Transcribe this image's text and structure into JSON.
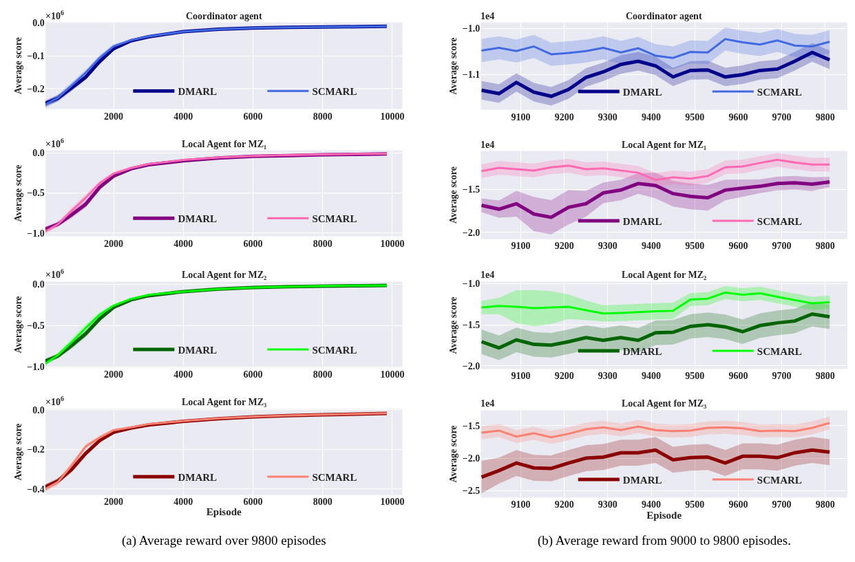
{
  "chart_data": [
    {
      "type": "line",
      "title": "Coordinator agent",
      "ylabel": "Average score",
      "annotations": [
        "×10$^{6}$"
      ],
      "x": [
        40,
        400,
        800,
        1200,
        1600,
        2000,
        2500,
        3000,
        4000,
        5000,
        6000,
        7000,
        8000,
        9000,
        9840
      ],
      "xlim": [
        40,
        10290
      ],
      "ylim": [
        -0.262,
        0.002
      ],
      "xticks": [
        2000,
        4000,
        6000,
        8000,
        10000
      ],
      "yticks": [
        {
          "value": 0,
          "label": "0.0"
        },
        {
          "value": -0.1,
          "label": "−0.1"
        },
        {
          "value": -0.2,
          "label": "−0.2"
        }
      ],
      "grid": true,
      "legend": "bottom right",
      "series": [
        {
          "name": "DMARL",
          "color": "#00008b",
          "values": [
            -0.245,
            -0.229,
            -0.197,
            -0.165,
            -0.117,
            -0.078,
            -0.054,
            -0.042,
            -0.026,
            -0.019,
            -0.015,
            -0.013,
            -0.012,
            -0.011,
            -0.01
          ],
          "lower": [
            -0.255,
            -0.239,
            -0.207,
            -0.173,
            -0.125,
            -0.084,
            -0.058,
            -0.045,
            -0.028,
            -0.02,
            -0.016,
            -0.014,
            -0.013,
            -0.012,
            -0.011
          ],
          "upper": [
            -0.235,
            -0.219,
            -0.187,
            -0.157,
            -0.109,
            -0.072,
            -0.05,
            -0.039,
            -0.024,
            -0.018,
            -0.014,
            -0.012,
            -0.011,
            -0.01,
            -0.009
          ]
        },
        {
          "name": "SCMARL",
          "color": "#4169e1",
          "values": [
            -0.248,
            -0.228,
            -0.19,
            -0.151,
            -0.106,
            -0.071,
            -0.052,
            -0.041,
            -0.026,
            -0.019,
            -0.015,
            -0.013,
            -0.012,
            -0.011,
            -0.01
          ],
          "lower": [
            -0.258,
            -0.238,
            -0.2,
            -0.159,
            -0.114,
            -0.077,
            -0.056,
            -0.044,
            -0.028,
            -0.02,
            -0.016,
            -0.014,
            -0.013,
            -0.012,
            -0.011
          ],
          "upper": [
            -0.238,
            -0.218,
            -0.18,
            -0.143,
            -0.098,
            -0.065,
            -0.048,
            -0.038,
            -0.024,
            -0.018,
            -0.014,
            -0.012,
            -0.011,
            -0.01,
            -0.009
          ]
        }
      ]
    },
    {
      "type": "line",
      "title": "Coordinator agent",
      "ylabel": "Average score",
      "annotations": [
        "1e4"
      ],
      "x": [
        9010,
        9050,
        9090,
        9130,
        9170,
        9210,
        9250,
        9290,
        9330,
        9370,
        9410,
        9450,
        9490,
        9530,
        9570,
        9610,
        9650,
        9690,
        9730,
        9770,
        9810
      ],
      "xlim": [
        9008,
        9851
      ],
      "ylim": [
        -1.176,
        -0.987
      ],
      "xticks": [
        9100,
        9200,
        9300,
        9400,
        9500,
        9600,
        9700,
        9800
      ],
      "yticks": [
        {
          "value": -1.0,
          "label": "−1.0"
        },
        {
          "value": -1.1,
          "label": "−1.1"
        }
      ],
      "grid": true,
      "legend": "bottom right",
      "series": [
        {
          "name": "DMARL",
          "color": "#00008b",
          "values": [
            -1.134,
            -1.141,
            -1.117,
            -1.138,
            -1.147,
            -1.132,
            -1.106,
            -1.094,
            -1.078,
            -1.071,
            -1.081,
            -1.105,
            -1.091,
            -1.09,
            -1.105,
            -1.1,
            -1.091,
            -1.088,
            -1.071,
            -1.052,
            -1.068
          ],
          "lower": [
            -1.154,
            -1.161,
            -1.137,
            -1.158,
            -1.167,
            -1.152,
            -1.126,
            -1.114,
            -1.098,
            -1.091,
            -1.101,
            -1.125,
            -1.111,
            -1.11,
            -1.125,
            -1.12,
            -1.111,
            -1.108,
            -1.091,
            -1.072,
            -1.088
          ],
          "upper": [
            -1.114,
            -1.121,
            -1.097,
            -1.118,
            -1.127,
            -1.112,
            -1.086,
            -1.074,
            -1.058,
            -1.051,
            -1.061,
            -1.085,
            -1.071,
            -1.07,
            -1.085,
            -1.08,
            -1.071,
            -1.068,
            -1.051,
            -1.032,
            -1.048
          ]
        },
        {
          "name": "SCMARL",
          "color": "#4169e1",
          "values": [
            -1.048,
            -1.042,
            -1.049,
            -1.039,
            -1.056,
            -1.053,
            -1.049,
            -1.042,
            -1.052,
            -1.043,
            -1.059,
            -1.064,
            -1.051,
            -1.052,
            -1.023,
            -1.03,
            -1.035,
            -1.026,
            -1.037,
            -1.039,
            -1.029
          ],
          "lower": [
            -1.073,
            -1.067,
            -1.074,
            -1.064,
            -1.081,
            -1.078,
            -1.074,
            -1.067,
            -1.077,
            -1.068,
            -1.084,
            -1.089,
            -1.076,
            -1.077,
            -1.048,
            -1.055,
            -1.06,
            -1.051,
            -1.062,
            -1.064,
            -1.054
          ],
          "upper": [
            -1.023,
            -1.017,
            -1.024,
            -1.014,
            -1.031,
            -1.028,
            -1.024,
            -1.017,
            -1.027,
            -1.018,
            -1.034,
            -1.039,
            -1.026,
            -1.027,
            -0.998,
            -1.005,
            -1.01,
            -1.001,
            -1.012,
            -1.014,
            -1.004
          ]
        }
      ]
    },
    {
      "type": "line",
      "title": "Local Agent for MZ₁",
      "ylabel": "Average score",
      "annotations": [
        "×10$^{6}$"
      ],
      "x": [
        40,
        400,
        800,
        1200,
        1600,
        2000,
        2500,
        3000,
        4000,
        5000,
        6000,
        7000,
        8000,
        9000,
        9840
      ],
      "xlim": [
        40,
        10290
      ],
      "ylim": [
        -1.04,
        0.03
      ],
      "xticks": [
        2000,
        4000,
        6000,
        8000,
        10000
      ],
      "yticks": [
        {
          "value": 0,
          "label": "0.0"
        },
        {
          "value": -0.5,
          "label": "−0.5"
        },
        {
          "value": -1.0,
          "label": "−1.0"
        }
      ],
      "grid": true,
      "legend": "bottom right",
      "series": [
        {
          "name": "DMARL",
          "color": "#800080",
          "values": [
            -0.95,
            -0.89,
            -0.77,
            -0.64,
            -0.43,
            -0.29,
            -0.2,
            -0.15,
            -0.1,
            -0.065,
            -0.045,
            -0.035,
            -0.025,
            -0.02,
            -0.015
          ],
          "lower": [
            -0.98,
            -0.92,
            -0.81,
            -0.68,
            -0.46,
            -0.31,
            -0.215,
            -0.16,
            -0.105,
            -0.07,
            -0.05,
            -0.04,
            -0.03,
            -0.025,
            -0.02
          ],
          "upper": [
            -0.92,
            -0.86,
            -0.73,
            -0.6,
            -0.4,
            -0.27,
            -0.185,
            -0.14,
            -0.095,
            -0.06,
            -0.04,
            -0.03,
            -0.02,
            -0.015,
            -0.01
          ]
        },
        {
          "name": "SCMARL",
          "color": "#ff69b4",
          "values": [
            -0.98,
            -0.89,
            -0.72,
            -0.56,
            -0.38,
            -0.26,
            -0.19,
            -0.14,
            -0.09,
            -0.06,
            -0.04,
            -0.03,
            -0.02,
            -0.015,
            -0.012
          ],
          "lower": [
            -1.01,
            -0.92,
            -0.76,
            -0.6,
            -0.41,
            -0.28,
            -0.205,
            -0.15,
            -0.095,
            -0.065,
            -0.045,
            -0.035,
            -0.025,
            -0.02,
            -0.017
          ],
          "upper": [
            -0.95,
            -0.86,
            -0.68,
            -0.52,
            -0.35,
            -0.24,
            -0.175,
            -0.13,
            -0.085,
            -0.055,
            -0.035,
            -0.025,
            -0.015,
            -0.01,
            -0.007
          ]
        }
      ]
    },
    {
      "type": "line",
      "title": "Local Agent for MZ₁",
      "ylabel": "Average score",
      "annotations": [
        "1e4"
      ],
      "x": [
        9010,
        9050,
        9090,
        9130,
        9170,
        9210,
        9250,
        9290,
        9330,
        9370,
        9410,
        9450,
        9490,
        9530,
        9570,
        9610,
        9650,
        9690,
        9730,
        9770,
        9810
      ],
      "xlim": [
        9008,
        9851
      ],
      "ylim": [
        -2.076,
        -1.051
      ],
      "xticks": [
        9100,
        9200,
        9300,
        9400,
        9500,
        9600,
        9700,
        9800
      ],
      "yticks": [
        {
          "value": -1.5,
          "label": "−1.5"
        },
        {
          "value": -2.0,
          "label": "−2.0"
        }
      ],
      "grid": true,
      "legend": "bottom right",
      "series": [
        {
          "name": "DMARL",
          "color": "#800080",
          "values": [
            -1.684,
            -1.728,
            -1.665,
            -1.785,
            -1.823,
            -1.706,
            -1.665,
            -1.538,
            -1.506,
            -1.43,
            -1.453,
            -1.547,
            -1.579,
            -1.595,
            -1.506,
            -1.484,
            -1.462,
            -1.43,
            -1.421,
            -1.437,
            -1.411
          ],
          "lower": [
            -1.764,
            -1.828,
            -1.815,
            -1.985,
            -2.023,
            -1.906,
            -1.815,
            -1.658,
            -1.626,
            -1.55,
            -1.603,
            -1.697,
            -1.729,
            -1.745,
            -1.626,
            -1.584,
            -1.542,
            -1.51,
            -1.501,
            -1.517,
            -1.471
          ],
          "upper": [
            -1.604,
            -1.628,
            -1.515,
            -1.585,
            -1.623,
            -1.506,
            -1.515,
            -1.418,
            -1.386,
            -1.31,
            -1.303,
            -1.397,
            -1.429,
            -1.445,
            -1.386,
            -1.384,
            -1.382,
            -1.35,
            -1.341,
            -1.357,
            -1.351
          ]
        },
        {
          "name": "SCMARL",
          "color": "#ff69b4",
          "values": [
            -1.285,
            -1.247,
            -1.263,
            -1.278,
            -1.241,
            -1.222,
            -1.263,
            -1.253,
            -1.278,
            -1.304,
            -1.389,
            -1.358,
            -1.373,
            -1.342,
            -1.241,
            -1.231,
            -1.19,
            -1.152,
            -1.184,
            -1.209,
            -1.209
          ],
          "lower": [
            -1.365,
            -1.327,
            -1.343,
            -1.358,
            -1.321,
            -1.302,
            -1.343,
            -1.333,
            -1.358,
            -1.384,
            -1.469,
            -1.438,
            -1.453,
            -1.422,
            -1.321,
            -1.311,
            -1.27,
            -1.232,
            -1.264,
            -1.289,
            -1.289
          ],
          "upper": [
            -1.205,
            -1.167,
            -1.183,
            -1.198,
            -1.161,
            -1.142,
            -1.183,
            -1.173,
            -1.198,
            -1.224,
            -1.309,
            -1.278,
            -1.293,
            -1.262,
            -1.161,
            -1.151,
            -1.11,
            -1.072,
            -1.104,
            -1.129,
            -1.129
          ]
        }
      ]
    },
    {
      "type": "line",
      "title": "Local Agent for MZ₂",
      "ylabel": "Average score",
      "annotations": [
        "×10$^{6}$"
      ],
      "x": [
        40,
        400,
        800,
        1200,
        1600,
        2000,
        2500,
        3000,
        4000,
        5000,
        6000,
        7000,
        8000,
        9000,
        9840
      ],
      "xlim": [
        40,
        10290
      ],
      "ylim": [
        -1.01,
        0.03
      ],
      "xticks": [
        2000,
        4000,
        6000,
        8000,
        10000
      ],
      "yticks": [
        {
          "value": 0,
          "label": "0.0"
        },
        {
          "value": -0.5,
          "label": "−0.5"
        },
        {
          "value": -1.0,
          "label": "−1.0"
        }
      ],
      "grid": true,
      "legend": "bottom right",
      "series": [
        {
          "name": "DMARL",
          "color": "#006400",
          "values": [
            -0.93,
            -0.87,
            -0.74,
            -0.6,
            -0.42,
            -0.28,
            -0.19,
            -0.14,
            -0.09,
            -0.06,
            -0.04,
            -0.03,
            -0.025,
            -0.02,
            -0.015
          ],
          "lower": [
            -0.96,
            -0.9,
            -0.78,
            -0.64,
            -0.45,
            -0.3,
            -0.205,
            -0.15,
            -0.095,
            -0.065,
            -0.045,
            -0.035,
            -0.03,
            -0.025,
            -0.02
          ],
          "upper": [
            -0.9,
            -0.84,
            -0.7,
            -0.56,
            -0.39,
            -0.26,
            -0.175,
            -0.13,
            -0.085,
            -0.055,
            -0.035,
            -0.025,
            -0.02,
            -0.015,
            -0.01
          ]
        },
        {
          "name": "SCMARL",
          "color": "#00ff00",
          "values": [
            -0.96,
            -0.86,
            -0.7,
            -0.53,
            -0.37,
            -0.26,
            -0.18,
            -0.13,
            -0.09,
            -0.06,
            -0.04,
            -0.03,
            -0.022,
            -0.018,
            -0.015
          ],
          "lower": [
            -0.99,
            -0.89,
            -0.74,
            -0.57,
            -0.4,
            -0.28,
            -0.195,
            -0.14,
            -0.095,
            -0.065,
            -0.045,
            -0.035,
            -0.027,
            -0.023,
            -0.02
          ],
          "upper": [
            -0.93,
            -0.83,
            -0.66,
            -0.49,
            -0.34,
            -0.24,
            -0.165,
            -0.12,
            -0.085,
            -0.055,
            -0.035,
            -0.025,
            -0.017,
            -0.013,
            -0.01
          ]
        }
      ]
    },
    {
      "type": "line",
      "title": "Local Agent for MZ₂",
      "ylabel": "Average score",
      "annotations": [
        "1e4"
      ],
      "x": [
        9010,
        9050,
        9090,
        9130,
        9170,
        9210,
        9250,
        9290,
        9330,
        9370,
        9410,
        9450,
        9490,
        9530,
        9570,
        9610,
        9650,
        9690,
        9730,
        9770,
        9810
      ],
      "xlim": [
        9008,
        9851
      ],
      "ylim": [
        -2.04,
        -0.974
      ],
      "xticks": [
        9100,
        9200,
        9300,
        9400,
        9500,
        9600,
        9700,
        9800
      ],
      "yticks": [
        {
          "value": -1.0,
          "label": "−1.0"
        },
        {
          "value": -1.5,
          "label": "−1.5"
        },
        {
          "value": -2.0,
          "label": "−2.0"
        }
      ],
      "grid": true,
      "legend": "bottom right",
      "series": [
        {
          "name": "DMARL",
          "color": "#006400",
          "values": [
            -1.707,
            -1.782,
            -1.684,
            -1.739,
            -1.749,
            -1.707,
            -1.657,
            -1.69,
            -1.657,
            -1.69,
            -1.598,
            -1.592,
            -1.52,
            -1.5,
            -1.526,
            -1.585,
            -1.51,
            -1.477,
            -1.454,
            -1.369,
            -1.402
          ],
          "lower": [
            -1.857,
            -1.932,
            -1.834,
            -1.889,
            -1.899,
            -1.857,
            -1.807,
            -1.84,
            -1.807,
            -1.84,
            -1.748,
            -1.742,
            -1.67,
            -1.65,
            -1.676,
            -1.735,
            -1.66,
            -1.627,
            -1.604,
            -1.519,
            -1.552
          ],
          "upper": [
            -1.557,
            -1.632,
            -1.534,
            -1.589,
            -1.599,
            -1.557,
            -1.507,
            -1.54,
            -1.507,
            -1.54,
            -1.448,
            -1.442,
            -1.37,
            -1.35,
            -1.376,
            -1.435,
            -1.36,
            -1.327,
            -1.304,
            -1.219,
            -1.252
          ]
        },
        {
          "name": "SCMARL",
          "color": "#00ff00",
          "values": [
            -1.29,
            -1.27,
            -1.28,
            -1.297,
            -1.29,
            -1.28,
            -1.323,
            -1.362,
            -1.356,
            -1.346,
            -1.336,
            -1.33,
            -1.192,
            -1.182,
            -1.107,
            -1.133,
            -1.116,
            -1.159,
            -1.198,
            -1.238,
            -1.225
          ],
          "lower": [
            -1.37,
            -1.37,
            -1.48,
            -1.517,
            -1.49,
            -1.43,
            -1.443,
            -1.462,
            -1.456,
            -1.446,
            -1.436,
            -1.43,
            -1.272,
            -1.262,
            -1.187,
            -1.213,
            -1.196,
            -1.239,
            -1.278,
            -1.318,
            -1.305
          ],
          "upper": [
            -1.21,
            -1.17,
            -1.08,
            -1.077,
            -1.09,
            -1.13,
            -1.203,
            -1.262,
            -1.256,
            -1.246,
            -1.236,
            -1.23,
            -1.112,
            -1.102,
            -1.027,
            -1.053,
            -1.036,
            -1.079,
            -1.118,
            -1.158,
            -1.145
          ]
        }
      ]
    },
    {
      "type": "line",
      "title": "Local Agent for MZ₃",
      "xlabel": "Episode",
      "ylabel": "Average score",
      "annotations": [
        "×10$^{6}$",
        "(a) Average reward over 9800 episodes"
      ],
      "x": [
        40,
        400,
        800,
        1200,
        1600,
        2000,
        2500,
        3000,
        4000,
        5000,
        6000,
        7000,
        8000,
        9000,
        9840
      ],
      "xlim": [
        40,
        10290
      ],
      "ylim": [
        -0.43,
        0.005
      ],
      "xticks": [
        2000,
        4000,
        6000,
        8000,
        10000
      ],
      "yticks": [
        {
          "value": 0,
          "label": "0.0"
        },
        {
          "value": -0.2,
          "label": "−0.2"
        },
        {
          "value": -0.4,
          "label": "−0.4"
        }
      ],
      "grid": true,
      "legend": "bottom right",
      "series": [
        {
          "name": "DMARL",
          "color": "#8b0000",
          "values": [
            -0.39,
            -0.36,
            -0.3,
            -0.22,
            -0.155,
            -0.113,
            -0.092,
            -0.076,
            -0.058,
            -0.045,
            -0.035,
            -0.029,
            -0.025,
            -0.021,
            -0.018
          ],
          "lower": [
            -0.405,
            -0.375,
            -0.315,
            -0.232,
            -0.165,
            -0.121,
            -0.097,
            -0.08,
            -0.061,
            -0.047,
            -0.037,
            -0.031,
            -0.027,
            -0.023,
            -0.02
          ],
          "upper": [
            -0.375,
            -0.345,
            -0.285,
            -0.208,
            -0.145,
            -0.105,
            -0.087,
            -0.072,
            -0.055,
            -0.043,
            -0.033,
            -0.027,
            -0.023,
            -0.019,
            -0.016
          ]
        },
        {
          "name": "SCMARL",
          "color": "#fa8072",
          "values": [
            -0.4,
            -0.365,
            -0.28,
            -0.185,
            -0.14,
            -0.103,
            -0.088,
            -0.072,
            -0.056,
            -0.043,
            -0.034,
            -0.028,
            -0.024,
            -0.02,
            -0.017
          ],
          "lower": [
            -0.415,
            -0.38,
            -0.295,
            -0.197,
            -0.15,
            -0.111,
            -0.093,
            -0.076,
            -0.059,
            -0.045,
            -0.036,
            -0.03,
            -0.026,
            -0.022,
            -0.019
          ],
          "upper": [
            -0.385,
            -0.35,
            -0.265,
            -0.173,
            -0.13,
            -0.095,
            -0.083,
            -0.068,
            -0.053,
            -0.041,
            -0.032,
            -0.026,
            -0.022,
            -0.018,
            -0.015
          ]
        }
      ]
    },
    {
      "type": "line",
      "title": "Local Agent for MZ₃",
      "xlabel": "Episode",
      "ylabel": "Average score",
      "annotations": [
        "1e4",
        "(b) Average reward from 9000 to 9800 episodes."
      ],
      "x": [
        9010,
        9050,
        9090,
        9130,
        9170,
        9210,
        9250,
        9290,
        9330,
        9370,
        9410,
        9450,
        9490,
        9530,
        9570,
        9610,
        9650,
        9690,
        9730,
        9770,
        9810
      ],
      "xlim": [
        9008,
        9851
      ],
      "ylim": [
        -2.608,
        -1.2625
      ],
      "xticks": [
        9100,
        9200,
        9300,
        9400,
        9500,
        9600,
        9700,
        9800
      ],
      "yticks": [
        {
          "value": -1.5,
          "label": "−1.5"
        },
        {
          "value": -2.0,
          "label": "−2.0"
        },
        {
          "value": -2.5,
          "label": "−2.5"
        }
      ],
      "grid": true,
      "legend": "bottom right",
      "series": [
        {
          "name": "DMARL",
          "color": "#8b0000",
          "values": [
            -2.292,
            -2.192,
            -2.075,
            -2.15,
            -2.158,
            -2.075,
            -2.0,
            -1.983,
            -1.917,
            -1.917,
            -1.875,
            -2.025,
            -1.992,
            -1.983,
            -2.075,
            -1.971,
            -1.971,
            -1.992,
            -1.917,
            -1.875,
            -1.908
          ],
          "lower": [
            -2.542,
            -2.392,
            -2.275,
            -2.35,
            -2.358,
            -2.275,
            -2.2,
            -2.183,
            -2.117,
            -2.117,
            -2.075,
            -2.225,
            -2.192,
            -2.183,
            -2.275,
            -2.171,
            -2.171,
            -2.192,
            -2.117,
            -2.075,
            -2.108
          ],
          "upper": [
            -2.042,
            -1.992,
            -1.875,
            -1.95,
            -1.958,
            -1.875,
            -1.8,
            -1.783,
            -1.717,
            -1.717,
            -1.675,
            -1.825,
            -1.792,
            -1.783,
            -1.875,
            -1.771,
            -1.771,
            -1.792,
            -1.717,
            -1.675,
            -1.708
          ]
        },
        {
          "name": "SCMARL",
          "color": "#fa8072",
          "values": [
            -1.608,
            -1.575,
            -1.667,
            -1.617,
            -1.679,
            -1.625,
            -1.554,
            -1.525,
            -1.567,
            -1.512,
            -1.567,
            -1.583,
            -1.575,
            -1.533,
            -1.525,
            -1.542,
            -1.583,
            -1.575,
            -1.583,
            -1.533,
            -1.458
          ],
          "lower": [
            -1.708,
            -1.675,
            -1.767,
            -1.717,
            -1.779,
            -1.725,
            -1.654,
            -1.625,
            -1.667,
            -1.612,
            -1.667,
            -1.683,
            -1.675,
            -1.633,
            -1.625,
            -1.642,
            -1.683,
            -1.675,
            -1.683,
            -1.633,
            -1.558
          ],
          "upper": [
            -1.508,
            -1.475,
            -1.567,
            -1.517,
            -1.579,
            -1.525,
            -1.454,
            -1.425,
            -1.467,
            -1.412,
            -1.467,
            -1.483,
            -1.475,
            -1.433,
            -1.425,
            -1.442,
            -1.483,
            -1.475,
            -1.483,
            -1.433,
            -1.358
          ]
        }
      ]
    }
  ]
}
